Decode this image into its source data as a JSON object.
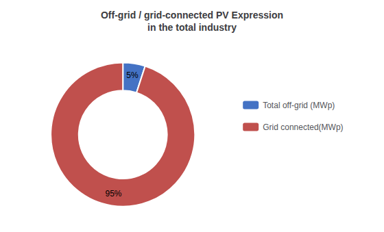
{
  "chart_data": {
    "type": "pie",
    "title": "Off-grid / grid-connected PV Expression\nin the total industry",
    "categories": [
      "Total off-grid (MWp)",
      "Grid connected(MWp)"
    ],
    "values": [
      5,
      95
    ],
    "value_labels": [
      "5%",
      "95%"
    ],
    "colors": [
      "#4472C4",
      "#C0504D"
    ],
    "data_labels": true,
    "legend": "right"
  }
}
